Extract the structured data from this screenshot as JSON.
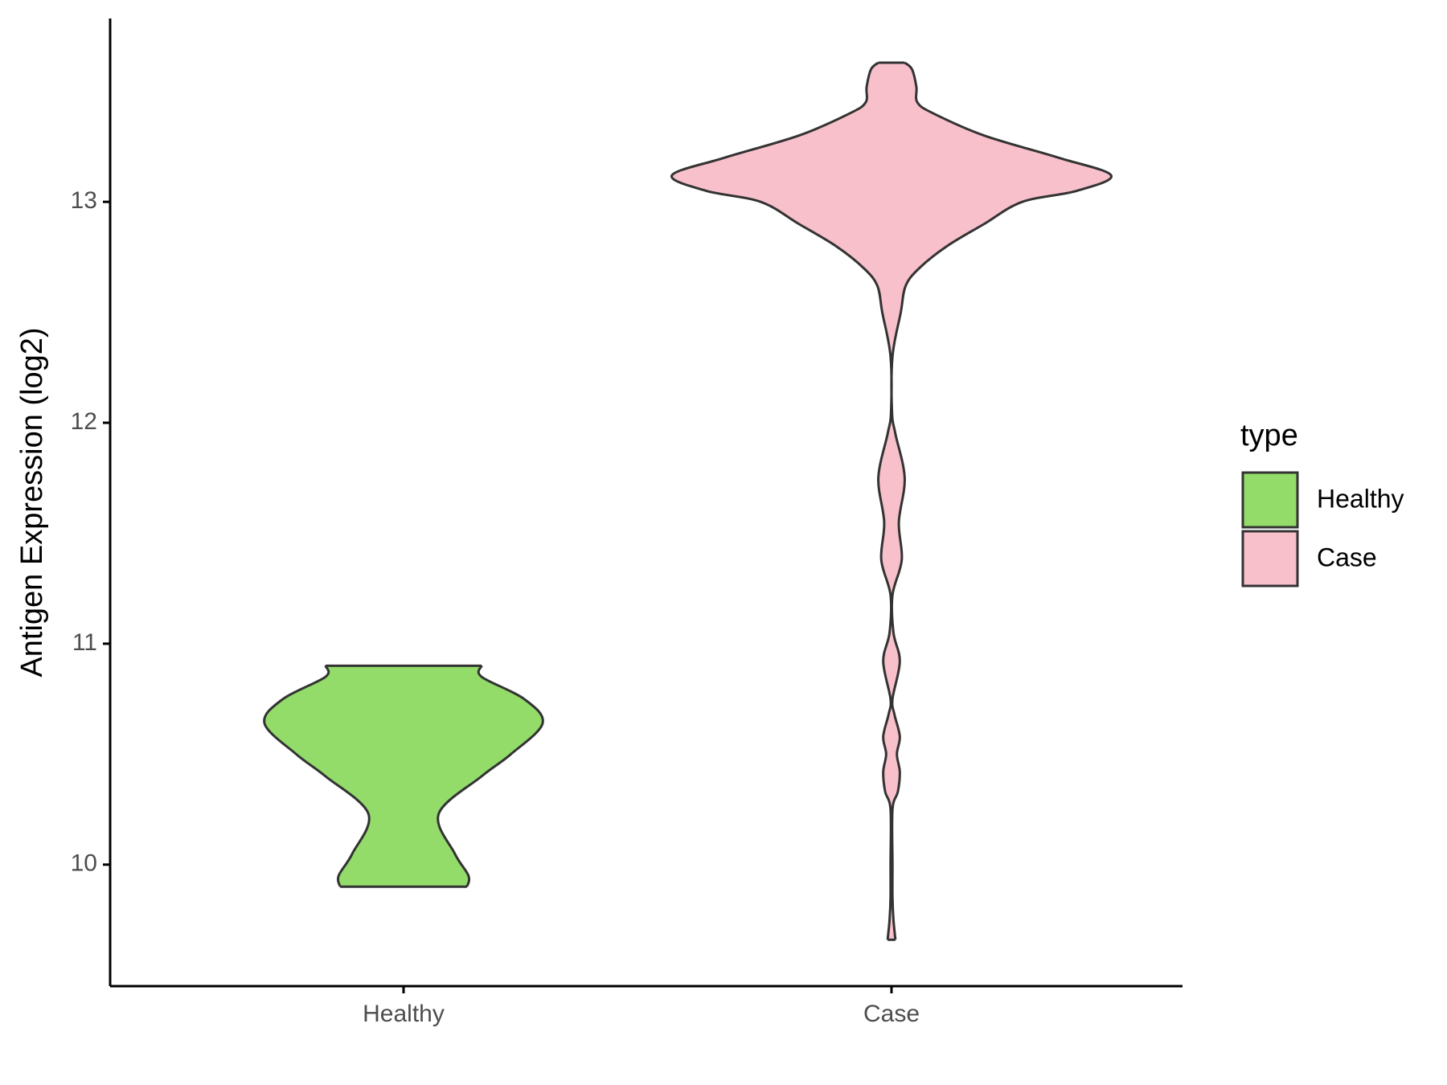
{
  "chart_data": {
    "type": "violin",
    "y_label": "Antigen Expression (log2)",
    "categories": [
      "Healthy",
      "Case"
    ],
    "legend_title": "type",
    "legend": "right",
    "ylim": [
      9.45,
      13.83
    ],
    "yticks": [
      10,
      11,
      12,
      13
    ],
    "series": [
      {
        "name": "Healthy",
        "color": "#93dc6a",
        "y": [
          9.9,
          9.95,
          10.05,
          10.23,
          10.4,
          10.5,
          10.64,
          10.75,
          10.85,
          10.9
        ],
        "widths": [
          0.13,
          0.133,
          0.105,
          0.072,
          0.16,
          0.22,
          0.285,
          0.247,
          0.16,
          0.16
        ]
      },
      {
        "name": "Case",
        "color": "#f8c0cb",
        "y": [
          9.66,
          9.75,
          9.85,
          10.0,
          10.25,
          10.33,
          10.42,
          10.5,
          10.58,
          10.68,
          10.75,
          10.92,
          11.05,
          11.22,
          11.38,
          11.55,
          11.75,
          11.95,
          12.05,
          12.3,
          12.5,
          12.62,
          12.7,
          12.8,
          12.9,
          13.0,
          13.05,
          13.12,
          13.2,
          13.3,
          13.4,
          13.45,
          13.52,
          13.6,
          13.63
        ],
        "widths": [
          0.008,
          0.004,
          0.002,
          0.002,
          0.002,
          0.013,
          0.017,
          0.011,
          0.017,
          0.006,
          0.002,
          0.017,
          0.004,
          0.002,
          0.021,
          0.015,
          0.027,
          0.008,
          0.001,
          0.002,
          0.019,
          0.029,
          0.057,
          0.114,
          0.19,
          0.268,
          0.38,
          0.45,
          0.342,
          0.19,
          0.086,
          0.053,
          0.051,
          0.042,
          0.027
        ]
      }
    ]
  }
}
